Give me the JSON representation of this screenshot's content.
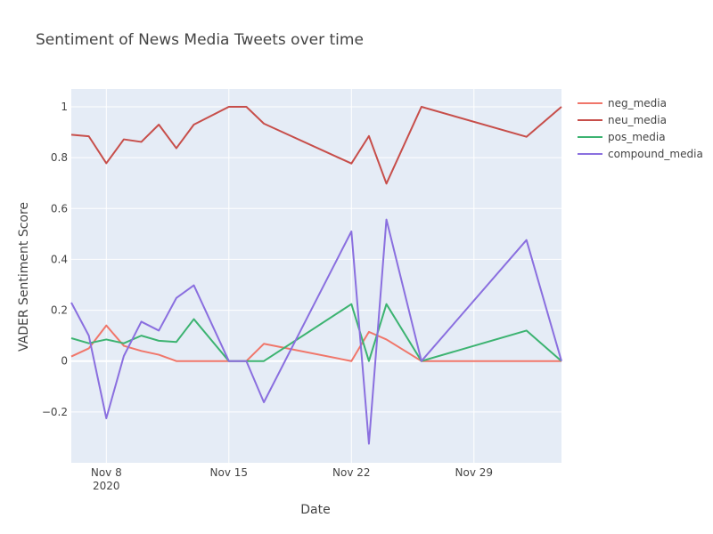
{
  "chart_data": {
    "type": "line",
    "title": "Sentiment of News Media Tweets over time",
    "xlabel": "Date",
    "ylabel": "VADER Sentiment Score",
    "x_range": [
      "2020-11-06",
      "2020-12-04"
    ],
    "y_range": [
      -0.4,
      1.07
    ],
    "x_ticks": [
      {
        "date": "2020-11-08",
        "label": "Nov 8",
        "sublabel": "2020"
      },
      {
        "date": "2020-11-15",
        "label": "Nov 15",
        "sublabel": ""
      },
      {
        "date": "2020-11-22",
        "label": "Nov 22",
        "sublabel": ""
      },
      {
        "date": "2020-11-29",
        "label": "Nov 29",
        "sublabel": ""
      }
    ],
    "y_ticks": [
      {
        "value": -0.2,
        "label": "−0.2"
      },
      {
        "value": 0,
        "label": "0"
      },
      {
        "value": 0.2,
        "label": "0.2"
      },
      {
        "value": 0.4,
        "label": "0.4"
      },
      {
        "value": 0.6,
        "label": "0.6"
      },
      {
        "value": 0.8,
        "label": "0.8"
      },
      {
        "value": 1,
        "label": "1"
      }
    ],
    "grid": true,
    "legend_position": "top-right",
    "x": [
      "2020-11-06",
      "2020-11-07",
      "2020-11-08",
      "2020-11-09",
      "2020-11-10",
      "2020-11-11",
      "2020-11-12",
      "2020-11-13",
      "2020-11-15",
      "2020-11-16",
      "2020-11-17",
      "2020-11-22",
      "2020-11-23",
      "2020-11-24",
      "2020-11-26",
      "2020-12-02",
      "2020-12-04"
    ],
    "series": [
      {
        "name": "neg_media",
        "color": "#f0766a",
        "values": [
          0.018,
          0.05,
          0.14,
          0.06,
          0.04,
          0.025,
          0.0,
          0.0,
          0.0,
          0.0,
          0.068,
          0.0,
          0.115,
          0.085,
          0.0,
          0.0,
          0.0
        ]
      },
      {
        "name": "neu_media",
        "color": "#c74e4a",
        "values": [
          0.89,
          0.884,
          0.778,
          0.872,
          0.862,
          0.93,
          0.837,
          0.93,
          1.0,
          1.0,
          0.934,
          0.777,
          0.885,
          0.698,
          1.0,
          0.882,
          1.0
        ]
      },
      {
        "name": "pos_media",
        "color": "#3cb371",
        "values": [
          0.09,
          0.07,
          0.085,
          0.07,
          0.1,
          0.08,
          0.075,
          0.165,
          0.0,
          0.0,
          0.0,
          0.224,
          0.0,
          0.224,
          0.0,
          0.12,
          0.0
        ]
      },
      {
        "name": "compound_media",
        "color": "#8a6fdf",
        "values": [
          0.23,
          0.1,
          -0.225,
          0.02,
          0.155,
          0.12,
          0.248,
          0.298,
          0.0,
          0.0,
          -0.162,
          0.51,
          -0.325,
          0.557,
          0.0,
          0.476,
          0.0
        ]
      }
    ]
  }
}
